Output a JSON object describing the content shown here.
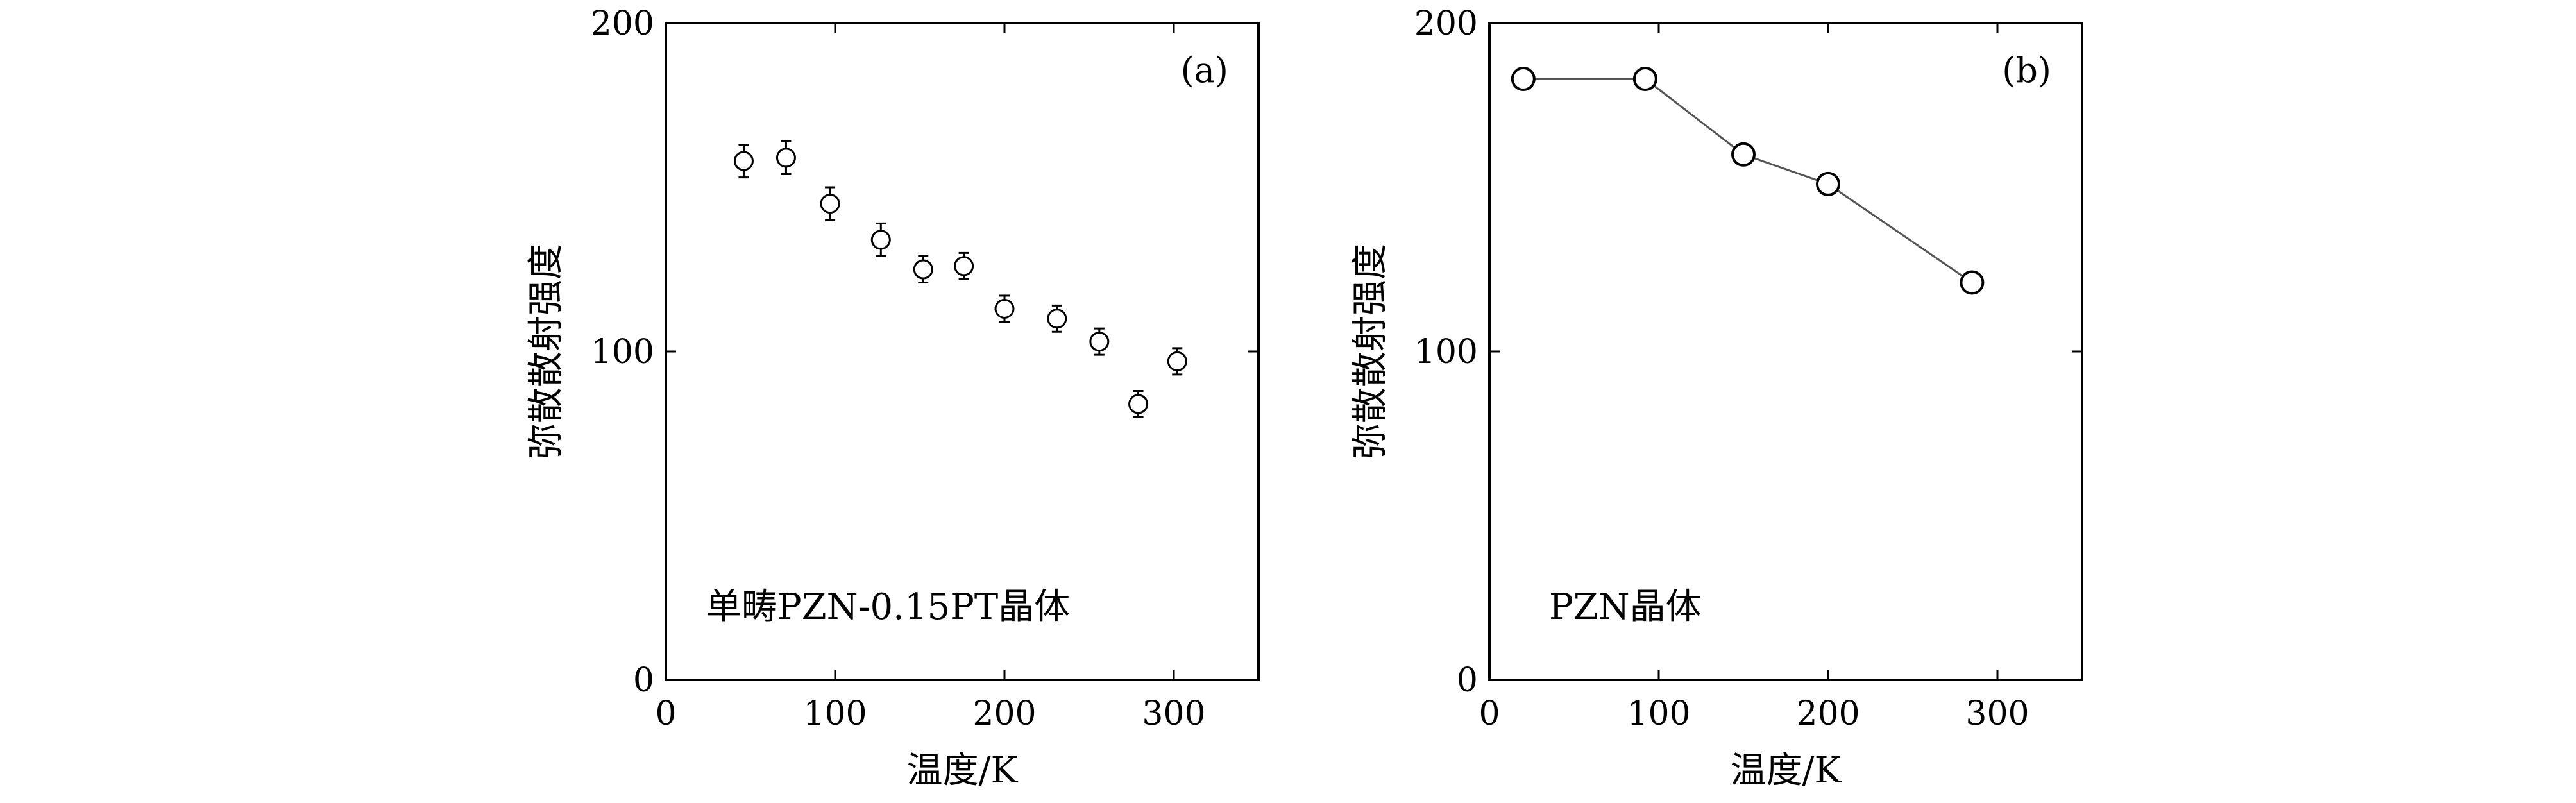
{
  "chart_data": [
    {
      "type": "scatter",
      "panel_label": "(a)",
      "annotation": "单畴PZN-0.15PT晶体",
      "xlabel": "温度/K",
      "ylabel": "弥散散射强度",
      "xlim": [
        0,
        350
      ],
      "ylim": [
        0,
        200
      ],
      "xticks": [
        "0",
        "100",
        "200",
        "300"
      ],
      "yticks": [
        "0",
        "100",
        "200"
      ],
      "error_bars": true,
      "grid": false,
      "series": [
        {
          "x": [
            46,
            71,
            97,
            127,
            152,
            176,
            200,
            231,
            256,
            279,
            302
          ],
          "y": [
            158,
            159,
            145,
            134,
            125,
            126,
            113,
            110,
            103,
            84,
            97
          ],
          "err": [
            5,
            5,
            5,
            5,
            4,
            4,
            4,
            4,
            4,
            4,
            4
          ]
        }
      ]
    },
    {
      "type": "line",
      "panel_label": "(b)",
      "annotation": "PZN晶体",
      "xlabel": "温度/K",
      "ylabel": "弥散散射强度",
      "xlim": [
        0,
        350
      ],
      "ylim": [
        0,
        200
      ],
      "xticks": [
        "0",
        "100",
        "200",
        "300"
      ],
      "yticks": [
        "0",
        "100",
        "200"
      ],
      "grid": false,
      "series": [
        {
          "x": [
            20,
            92,
            150,
            200,
            285
          ],
          "y": [
            183,
            183,
            160,
            151,
            121
          ]
        }
      ]
    }
  ]
}
